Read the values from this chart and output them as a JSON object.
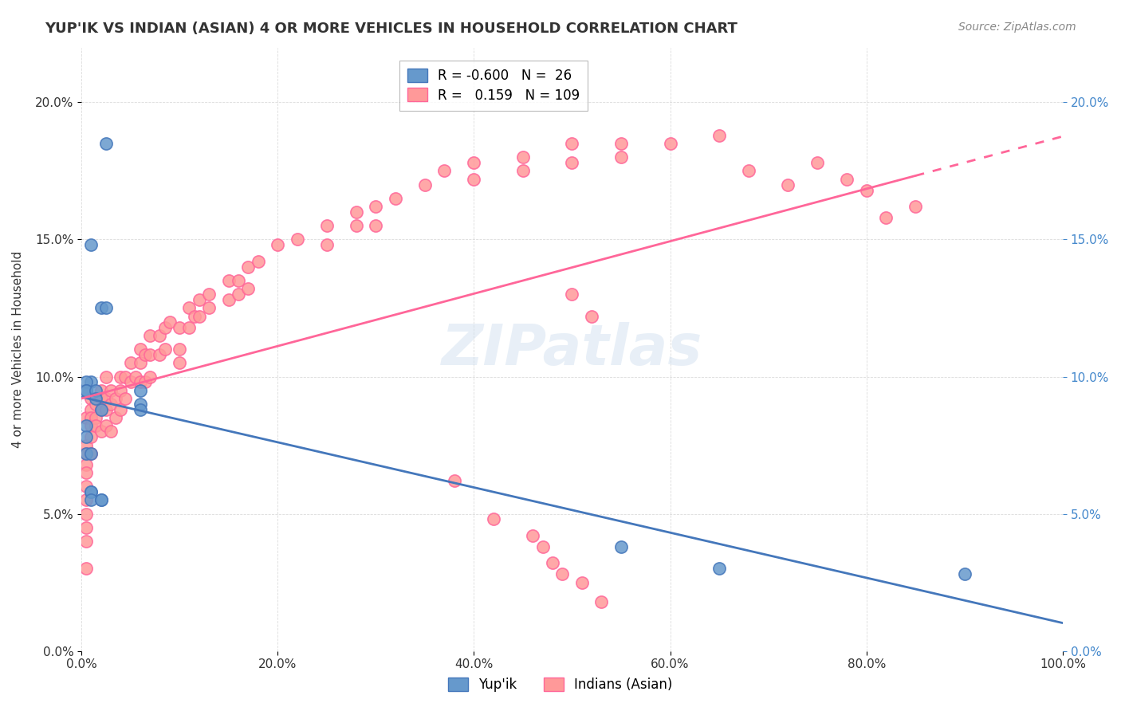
{
  "title": "YUP'IK VS INDIAN (ASIAN) 4 OR MORE VEHICLES IN HOUSEHOLD CORRELATION CHART",
  "source": "Source: ZipAtlas.com",
  "xlabel": "",
  "ylabel": "4 or more Vehicles in Household",
  "xlim": [
    0.0,
    1.0
  ],
  "ylim": [
    0.0,
    0.22
  ],
  "xtick_labels": [
    "0.0%",
    "20.0%",
    "40.0%",
    "60.0%",
    "80.0%",
    "100.0%"
  ],
  "ytick_labels": [
    "0.0%",
    "5.0%",
    "10.0%",
    "15.0%",
    "20.0%"
  ],
  "ytick_right_labels": [
    "0.0%",
    "5.0%",
    "10.0%",
    "15.0%",
    "20.0%"
  ],
  "blue_R": "-0.600",
  "blue_N": "26",
  "pink_R": "0.159",
  "pink_N": "109",
  "blue_color": "#6699CC",
  "pink_color": "#FF9999",
  "blue_line_color": "#4477BB",
  "pink_line_color": "#FF6699",
  "watermark": "ZIPatlas",
  "blue_scatter_x": [
    0.01,
    0.02,
    0.025,
    0.025,
    0.01,
    0.005,
    0.005,
    0.005,
    0.005,
    0.005,
    0.005,
    0.01,
    0.01,
    0.01,
    0.01,
    0.015,
    0.015,
    0.02,
    0.02,
    0.02,
    0.06,
    0.06,
    0.06,
    0.55,
    0.65,
    0.9
  ],
  "blue_scatter_y": [
    0.148,
    0.125,
    0.125,
    0.185,
    0.098,
    0.098,
    0.095,
    0.095,
    0.082,
    0.078,
    0.072,
    0.072,
    0.058,
    0.058,
    0.055,
    0.095,
    0.092,
    0.088,
    0.055,
    0.055,
    0.095,
    0.09,
    0.088,
    0.038,
    0.03,
    0.028
  ],
  "pink_scatter_x": [
    0.005,
    0.005,
    0.005,
    0.005,
    0.005,
    0.005,
    0.005,
    0.005,
    0.005,
    0.005,
    0.005,
    0.01,
    0.01,
    0.01,
    0.01,
    0.01,
    0.01,
    0.015,
    0.015,
    0.015,
    0.02,
    0.02,
    0.02,
    0.02,
    0.025,
    0.025,
    0.025,
    0.025,
    0.03,
    0.03,
    0.03,
    0.035,
    0.035,
    0.04,
    0.04,
    0.04,
    0.045,
    0.045,
    0.05,
    0.05,
    0.055,
    0.06,
    0.06,
    0.06,
    0.065,
    0.065,
    0.07,
    0.07,
    0.07,
    0.08,
    0.08,
    0.085,
    0.085,
    0.09,
    0.1,
    0.1,
    0.1,
    0.11,
    0.11,
    0.115,
    0.12,
    0.12,
    0.13,
    0.13,
    0.15,
    0.15,
    0.16,
    0.16,
    0.17,
    0.17,
    0.18,
    0.2,
    0.22,
    0.25,
    0.25,
    0.28,
    0.28,
    0.3,
    0.3,
    0.32,
    0.35,
    0.37,
    0.4,
    0.4,
    0.45,
    0.45,
    0.5,
    0.5,
    0.55,
    0.55,
    0.6,
    0.65,
    0.68,
    0.72,
    0.75,
    0.78,
    0.8,
    0.82,
    0.85,
    0.5,
    0.52,
    0.38,
    0.42,
    0.46,
    0.47,
    0.48,
    0.49,
    0.51,
    0.53
  ],
  "pink_scatter_y": [
    0.075,
    0.072,
    0.068,
    0.065,
    0.06,
    0.055,
    0.05,
    0.045,
    0.04,
    0.085,
    0.03,
    0.092,
    0.088,
    0.085,
    0.082,
    0.078,
    0.072,
    0.09,
    0.085,
    0.082,
    0.095,
    0.092,
    0.088,
    0.08,
    0.1,
    0.092,
    0.088,
    0.082,
    0.095,
    0.09,
    0.08,
    0.092,
    0.085,
    0.1,
    0.095,
    0.088,
    0.1,
    0.092,
    0.105,
    0.098,
    0.1,
    0.11,
    0.105,
    0.098,
    0.108,
    0.098,
    0.115,
    0.108,
    0.1,
    0.115,
    0.108,
    0.118,
    0.11,
    0.12,
    0.118,
    0.11,
    0.105,
    0.125,
    0.118,
    0.122,
    0.128,
    0.122,
    0.13,
    0.125,
    0.135,
    0.128,
    0.135,
    0.13,
    0.14,
    0.132,
    0.142,
    0.148,
    0.15,
    0.155,
    0.148,
    0.16,
    0.155,
    0.162,
    0.155,
    0.165,
    0.17,
    0.175,
    0.178,
    0.172,
    0.18,
    0.175,
    0.185,
    0.178,
    0.185,
    0.18,
    0.185,
    0.188,
    0.175,
    0.17,
    0.178,
    0.172,
    0.168,
    0.158,
    0.162,
    0.13,
    0.122,
    0.062,
    0.048,
    0.042,
    0.038,
    0.032,
    0.028,
    0.025,
    0.018
  ]
}
